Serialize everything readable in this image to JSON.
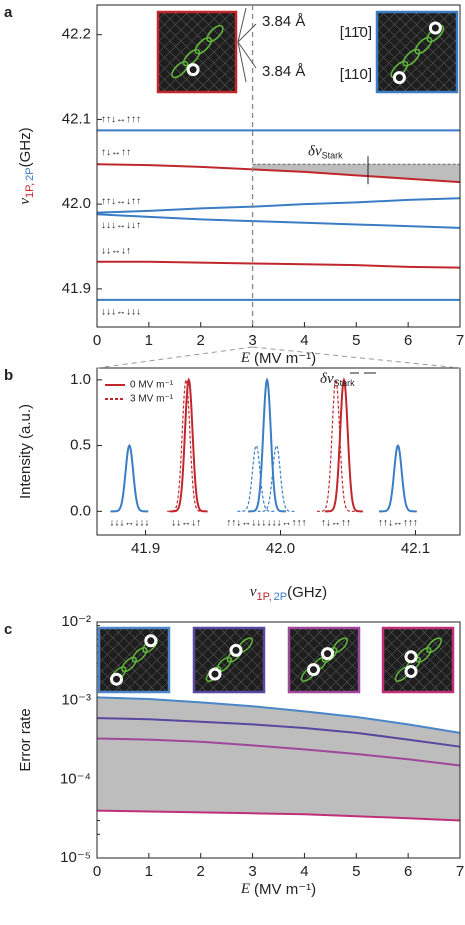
{
  "chart_data": [
    {
      "type": "line",
      "panel_label": "a",
      "y_label_parts": [
        "ν",
        "1P,",
        "2P",
        "(GHz)"
      ],
      "x_label_parts": [
        "E",
        "(MV m⁻¹)"
      ],
      "x": [
        0,
        1,
        2,
        3,
        4,
        5,
        6,
        7
      ],
      "xlim": [
        0,
        7
      ],
      "xticks": [
        0,
        1,
        2,
        3,
        4,
        5,
        6,
        7
      ],
      "ylim": [
        41.855,
        42.235
      ],
      "yticks": [
        {
          "value": 41.9,
          "label": "41.9"
        },
        {
          "value": 42.0,
          "label": "42.0"
        },
        {
          "value": 42.1,
          "label": "42.1"
        },
        {
          "value": 42.2,
          "label": "42.2"
        }
      ],
      "series": [
        {
          "label": "↑↑↓↔↑↑↑",
          "color": "#3b7dc4",
          "values": [
            42.087,
            42.087,
            42.087,
            42.087,
            42.087,
            42.087,
            42.087,
            42.087
          ]
        },
        {
          "label": "↑↓↔↑↑",
          "color": "#c0272d",
          "values": [
            42.047,
            42.046,
            42.044,
            42.041,
            42.038,
            42.034,
            42.03,
            42.026
          ]
        },
        {
          "label": "↑↑↓↔↓↑↑",
          "color": "#3b7dc4",
          "values": [
            41.99,
            41.992,
            41.995,
            41.997,
            42.0,
            42.002,
            42.005,
            42.007
          ]
        },
        {
          "label": "↓↓↓↔↓↓↑",
          "color": "#3b7dc4",
          "values": [
            41.988,
            41.985,
            41.982,
            41.98,
            41.978,
            41.976,
            41.974,
            41.972
          ]
        },
        {
          "label": "↓↓↔↓↑",
          "color": "#c0272d",
          "values": [
            41.932,
            41.932,
            41.931,
            41.93,
            41.929,
            41.928,
            41.926,
            41.925
          ]
        },
        {
          "label": "↓↓↓↔↓↓↓",
          "color": "#3b7dc4",
          "values": [
            41.887,
            41.887,
            41.887,
            41.887,
            41.887,
            41.887,
            41.887,
            41.887
          ]
        }
      ],
      "marker_x": 3,
      "reference_value": 42.047,
      "shade_color": "#bdbdbd",
      "stark_label_parts": [
        "δν",
        "Stark"
      ],
      "annotations": [
        "3.84 Å",
        "3.84 Å",
        "[11̄0]",
        "[110]"
      ]
    },
    {
      "type": "peaks",
      "panel_label": "b",
      "y_label": "Intensity (a.u.)",
      "x_label_parts": [
        "ν",
        "1P,",
        "2P",
        "(GHz)"
      ],
      "xlim": [
        41.864,
        42.133
      ],
      "xticks": [
        41.9,
        {
          "value": 42.0,
          "label": "42.0"
        },
        42.1
      ],
      "ylim": [
        -0.18,
        1.09
      ],
      "yticks": [
        {
          "value": 0,
          "label": "0.0"
        },
        {
          "value": 0.5,
          "label": "0.5"
        },
        {
          "value": 1,
          "label": "1.0"
        }
      ],
      "peak_sigma": 0.0028,
      "stark_label_parts": [
        "δν",
        "Stark"
      ],
      "series": [
        {
          "name": "0 MV m⁻¹",
          "color": "#c0272d",
          "dashed": false,
          "peaks": [
            {
              "x": 41.888,
              "height": 0.5,
              "color": "#3b7dc4"
            },
            {
              "x": 41.932,
              "height": 1.0,
              "color": "#c0272d"
            },
            {
              "x": 41.99,
              "height": 1.0,
              "color": "#3b7dc4"
            },
            {
              "x": 42.047,
              "height": 1.0,
              "color": "#c0272d"
            },
            {
              "x": 42.087,
              "height": 0.5,
              "color": "#3b7dc4"
            }
          ]
        },
        {
          "name": "3 MV m⁻¹",
          "color": "#c0272d",
          "dashed": true,
          "peaks": [
            {
              "x": 41.888,
              "height": 0.5,
              "color": "#3b7dc4",
              "label": "↓↓↓↔↓↓↓"
            },
            {
              "x": 41.93,
              "height": 1.0,
              "color": "#c0272d",
              "label": "↓↓↔↓↑"
            },
            {
              "x": 41.982,
              "height": 0.5,
              "color": "#3b7dc4",
              "label": "↑↑↓↔↓↓↓"
            },
            {
              "x": 41.997,
              "height": 0.5,
              "color": "#3b7dc4",
              "label": "↓↓↓↔↑↑↑"
            },
            {
              "x": 42.041,
              "height": 1.0,
              "color": "#c0272d",
              "label": "↑↓↔↑↑"
            },
            {
              "x": 42.087,
              "height": 0.5,
              "color": "#3b7dc4",
              "label": "↑↑↓↔↑↑↑"
            }
          ]
        }
      ]
    },
    {
      "type": "line",
      "panel_label": "c",
      "log_y": true,
      "y_label": "Error rate",
      "x_label_parts": [
        "E",
        "(MV m⁻¹)"
      ],
      "x": [
        0,
        1,
        2,
        3,
        4,
        5,
        6,
        7
      ],
      "xlim": [
        0,
        7
      ],
      "xticks": [
        0,
        1,
        2,
        3,
        4,
        5,
        6,
        7
      ],
      "ylim": [
        1e-05,
        0.01
      ],
      "yticks": [
        {
          "value": 1e-05,
          "label": "10⁻⁵"
        },
        {
          "value": 0.0001,
          "label": "10⁻⁴"
        },
        {
          "value": 0.001,
          "label": "10⁻³"
        },
        {
          "value": 0.01,
          "label": "10⁻²"
        }
      ],
      "shade_color": "#bdbdbd",
      "series": [
        {
          "color": "#4a86c8",
          "values": [
            0.0011,
            0.00105,
            0.00095,
            0.00085,
            0.00073,
            0.00062,
            0.0005,
            0.00039
          ]
        },
        {
          "color": "#5a47a0",
          "values": [
            0.0006,
            0.00058,
            0.00054,
            0.0005,
            0.00045,
            0.00039,
            0.00032,
            0.00026
          ]
        },
        {
          "color": "#a0479c",
          "values": [
            0.00033,
            0.00032,
            0.0003,
            0.00027,
            0.00024,
            0.00021,
            0.00018,
            0.00015
          ]
        },
        {
          "color": "#c0307a",
          "values": [
            4e-05,
            3.9e-05,
            3.8e-05,
            3.7e-05,
            3.6e-05,
            3.4e-05,
            3.2e-05,
            3e-05
          ]
        }
      ]
    }
  ]
}
